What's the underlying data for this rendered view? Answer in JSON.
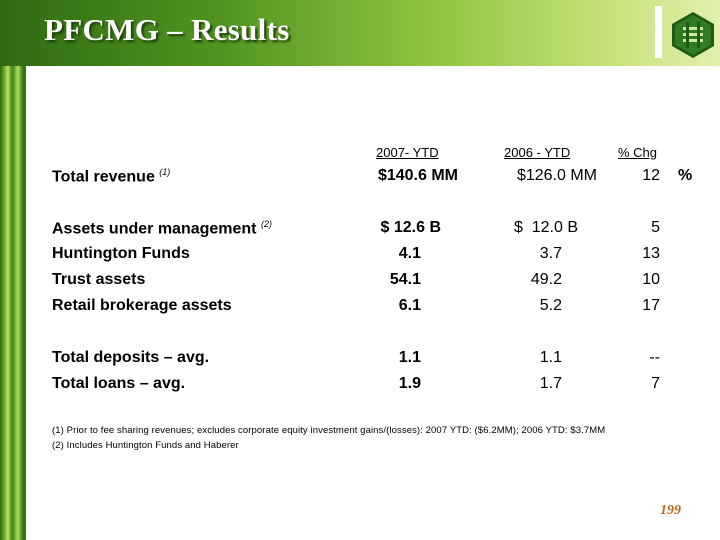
{
  "title": "PFCMG – Results",
  "columns": {
    "y2007": "2007- YTD",
    "y2006": "2006 - YTD",
    "chg": "% Chg"
  },
  "rows": [
    {
      "label": "Total revenue",
      "note": "(1)",
      "y2007": "$140.6 MM",
      "y2006": "$126.0 MM",
      "chg": "12",
      "pct": "%"
    },
    {
      "label": "Assets under management",
      "note": "(2)",
      "y2007": "$ 12.6 B",
      "y2006": "$  12.0 B",
      "chg": "5"
    },
    {
      "label": "Huntington Funds",
      "y2007": "4.1",
      "y2006": "3.7",
      "chg": "13"
    },
    {
      "label": "Trust assets",
      "y2007": "54.1",
      "y2006": "49.2",
      "chg": "10"
    },
    {
      "label": "Retail brokerage assets",
      "y2007": "6.1",
      "y2006": "5.2",
      "chg": "17"
    },
    {
      "label": "Total deposits – avg.",
      "y2007": "1.1",
      "y2006": "1.1",
      "chg": "--"
    },
    {
      "label": "Total loans – avg.",
      "y2007": "1.9",
      "y2006": "1.7",
      "chg": "7"
    }
  ],
  "footnotes": [
    "(1)  Prior to fee sharing revenues; excludes corporate equity investment gains/(losses): 2007 YTD: ($6.2MM); 2006 YTD: $3.7MM",
    "(2)  Includes Huntington Funds and Haberer"
  ],
  "page_number": "199",
  "colors": {
    "accent_green": "#4f9420",
    "page_number": "#c0661a"
  },
  "icons": {
    "logo": "huntington-logo"
  }
}
